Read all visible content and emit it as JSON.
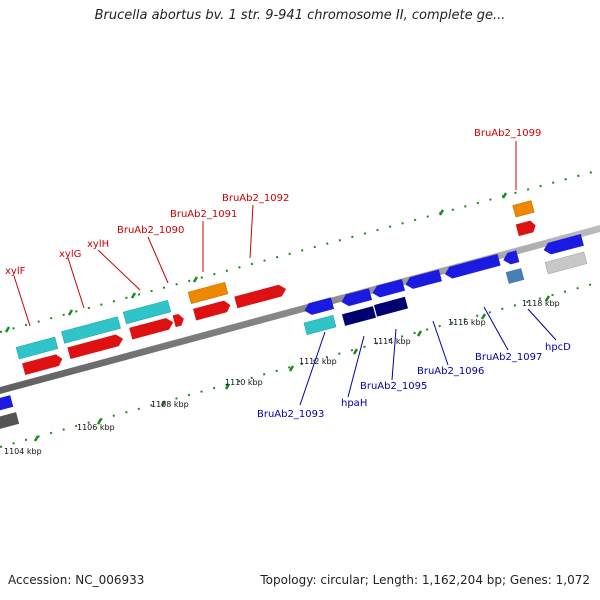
{
  "title": "Brucella abortus bv. 1 str. 9-941 chromosome II, complete ge...",
  "accession": "Accession: NC_006933",
  "summary": "Topology: circular; Length: 1,162,204 bp; Genes: 1,072",
  "ruler": [
    "1104 kbp",
    "1106 kbp",
    "1108 kbp",
    "1110 kbp",
    "1112 kbp",
    "1114 kbp",
    "1116 kbp",
    "1118 kbp"
  ],
  "labels_top": [
    "xylF",
    "xylG",
    "xylH",
    "BruAb2_1090",
    "BruAb2_1091",
    "BruAb2_1092",
    "BruAb2_1099"
  ],
  "labels_bottom": [
    "BruAb2_1093",
    "hpaH",
    "BruAb2_1095",
    "BruAb2_1096",
    "BruAb2_1097",
    "hpcD"
  ],
  "colors": {
    "forward_label": "#cc0000",
    "reverse_label": "#0000aa",
    "cyan": "#2ec4c8",
    "red": "#dd1111",
    "orange": "#ee8800",
    "blue": "#1a1ae0",
    "navy": "#000070",
    "steel": "#4a7fb5",
    "grey": "#c8c8c8",
    "dark_grey": "#555555",
    "backbone": "#8a8a8a",
    "ticks": "#1a8a1a"
  }
}
